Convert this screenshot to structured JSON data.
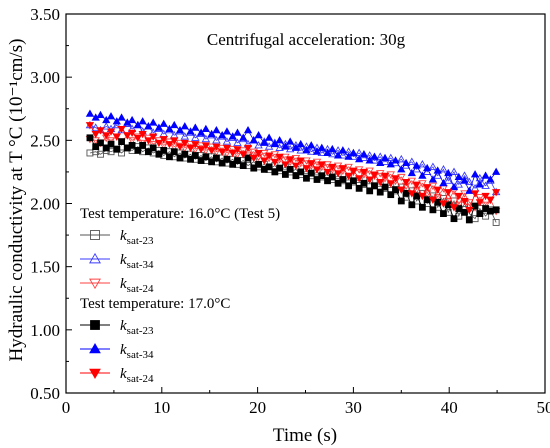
{
  "chart_data": {
    "type": "scatter",
    "annotation": "Centrifugal acceleration: 30g",
    "xlabel": "Time (s)",
    "ylabel": "Hydraulic conductivity at T °C (10⁻¹cm/s)",
    "xlim": [
      0,
      50
    ],
    "ylim": [
      0.5,
      3.5
    ],
    "x_ticks": [
      0,
      10,
      20,
      30,
      40,
      50
    ],
    "y_ticks": [
      0.5,
      1.0,
      1.5,
      2.0,
      2.5,
      3.0,
      3.5
    ],
    "x_tick_labels": [
      "0",
      "10",
      "20",
      "30",
      "40",
      "50"
    ],
    "y_tick_labels": [
      "0.50",
      "1.00",
      "1.50",
      "2.00",
      "2.50",
      "3.00",
      "3.50"
    ],
    "grid": false,
    "legend_groups": [
      {
        "title": "Test temperature: 16.0°C (Test 5)",
        "entries": [
          0,
          1,
          2
        ]
      },
      {
        "title": "Test temperature: 17.0°C",
        "entries": [
          3,
          4,
          5
        ]
      }
    ],
    "legend_placement": "left-middle",
    "x": [
      2.5,
      3.1,
      3.6,
      4.2,
      4.7,
      5.3,
      5.8,
      6.4,
      6.9,
      7.5,
      8.0,
      8.6,
      9.1,
      9.7,
      10.2,
      10.8,
      11.3,
      11.9,
      12.4,
      13.0,
      13.5,
      14.1,
      14.6,
      15.2,
      15.7,
      16.3,
      16.8,
      17.4,
      17.9,
      18.5,
      19.0,
      19.6,
      20.1,
      20.7,
      21.2,
      21.8,
      22.3,
      22.9,
      23.4,
      24.0,
      24.5,
      25.1,
      25.6,
      26.2,
      26.7,
      27.3,
      27.8,
      28.4,
      28.9,
      29.5,
      30.0,
      30.6,
      31.1,
      31.7,
      32.2,
      32.8,
      33.3,
      33.9,
      34.4,
      35.0,
      35.5,
      36.1,
      36.6,
      37.2,
      37.7,
      38.3,
      38.8,
      39.4,
      39.9,
      40.5,
      41.0,
      41.6,
      42.1,
      42.7,
      43.2,
      43.8,
      44.3,
      44.9
    ],
    "series": [
      {
        "name": "k_sat-23",
        "name_main": "k",
        "name_sub": "sat-23",
        "group": "16.0",
        "marker": "square",
        "filled": false,
        "color": "#555555",
        "values": [
          2.4,
          2.41,
          2.39,
          2.42,
          2.41,
          2.43,
          2.4,
          2.44,
          2.42,
          2.45,
          2.41,
          2.44,
          2.4,
          2.42,
          2.38,
          2.41,
          2.37,
          2.4,
          2.36,
          2.39,
          2.35,
          2.38,
          2.34,
          2.37,
          2.33,
          2.36,
          2.32,
          2.35,
          2.31,
          2.34,
          2.3,
          2.33,
          2.29,
          2.31,
          2.27,
          2.3,
          2.26,
          2.29,
          2.25,
          2.27,
          2.23,
          2.26,
          2.22,
          2.25,
          2.21,
          2.23,
          2.19,
          2.22,
          2.18,
          2.21,
          2.17,
          2.19,
          2.15,
          2.18,
          2.14,
          2.16,
          2.12,
          2.15,
          2.1,
          2.13,
          2.05,
          2.1,
          2.02,
          2.08,
          2.0,
          2.06,
          1.97,
          2.04,
          1.93,
          2.02,
          1.9,
          2.0,
          1.92,
          1.88,
          1.96,
          1.9,
          1.95,
          1.85
        ]
      },
      {
        "name": "k_sat-34",
        "name_main": "k",
        "name_sub": "sat-34",
        "group": "16.0",
        "marker": "triangle",
        "filled": false,
        "color": "#3a3aff",
        "values": [
          2.62,
          2.6,
          2.58,
          2.61,
          2.59,
          2.62,
          2.58,
          2.63,
          2.59,
          2.62,
          2.57,
          2.61,
          2.56,
          2.59,
          2.55,
          2.58,
          2.54,
          2.57,
          2.53,
          2.56,
          2.52,
          2.55,
          2.51,
          2.54,
          2.5,
          2.53,
          2.49,
          2.52,
          2.48,
          2.51,
          2.47,
          2.5,
          2.46,
          2.49,
          2.45,
          2.48,
          2.44,
          2.47,
          2.43,
          2.46,
          2.42,
          2.45,
          2.41,
          2.44,
          2.4,
          2.43,
          2.39,
          2.42,
          2.38,
          2.41,
          2.37,
          2.4,
          2.36,
          2.38,
          2.34,
          2.37,
          2.33,
          2.36,
          2.32,
          2.35,
          2.3,
          2.33,
          2.27,
          2.31,
          2.25,
          2.29,
          2.22,
          2.27,
          2.18,
          2.25,
          2.15,
          2.22,
          2.17,
          2.12,
          2.2,
          2.14,
          2.18,
          2.09
        ]
      },
      {
        "name": "k_sat-24",
        "name_main": "k",
        "name_sub": "sat-24",
        "group": "16.0",
        "marker": "triangle-down",
        "filled": false,
        "color": "#ff4040",
        "values": [
          2.51,
          2.5,
          2.48,
          2.52,
          2.5,
          2.53,
          2.49,
          2.54,
          2.5,
          2.53,
          2.48,
          2.52,
          2.47,
          2.5,
          2.46,
          2.49,
          2.45,
          2.48,
          2.44,
          2.47,
          2.43,
          2.46,
          2.42,
          2.45,
          2.41,
          2.44,
          2.4,
          2.43,
          2.39,
          2.42,
          2.38,
          2.41,
          2.37,
          2.4,
          2.36,
          2.39,
          2.35,
          2.37,
          2.33,
          2.36,
          2.32,
          2.34,
          2.3,
          2.33,
          2.29,
          2.31,
          2.27,
          2.3,
          2.26,
          2.29,
          2.25,
          2.27,
          2.23,
          2.26,
          2.22,
          2.24,
          2.2,
          2.23,
          2.18,
          2.21,
          2.14,
          2.18,
          2.11,
          2.16,
          2.08,
          2.14,
          2.05,
          2.12,
          2.02,
          2.1,
          1.99,
          2.08,
          2.01,
          1.97,
          2.05,
          1.99,
          2.03,
          1.94
        ]
      },
      {
        "name": "k_sat-23",
        "name_main": "k",
        "name_sub": "sat-23",
        "group": "17.0",
        "marker": "square",
        "filled": true,
        "color": "#000000",
        "values": [
          2.52,
          2.45,
          2.48,
          2.44,
          2.47,
          2.43,
          2.49,
          2.44,
          2.46,
          2.42,
          2.46,
          2.41,
          2.44,
          2.39,
          2.42,
          2.37,
          2.41,
          2.36,
          2.39,
          2.35,
          2.38,
          2.34,
          2.37,
          2.33,
          2.36,
          2.32,
          2.35,
          2.31,
          2.34,
          2.3,
          2.36,
          2.28,
          2.31,
          2.27,
          2.29,
          2.25,
          2.28,
          2.23,
          2.27,
          2.22,
          2.25,
          2.2,
          2.24,
          2.19,
          2.22,
          2.18,
          2.21,
          2.16,
          2.19,
          2.14,
          2.18,
          2.12,
          2.16,
          2.1,
          2.14,
          2.09,
          2.13,
          2.07,
          2.11,
          2.02,
          2.08,
          1.99,
          2.06,
          1.97,
          2.03,
          1.95,
          2.01,
          1.92,
          1.99,
          1.88,
          1.96,
          1.93,
          1.87,
          1.98,
          1.92,
          1.96,
          1.94,
          1.95
        ]
      },
      {
        "name": "k_sat-34",
        "name_main": "k",
        "name_sub": "sat-34",
        "group": "17.0",
        "marker": "triangle",
        "filled": true,
        "color": "#0000ff",
        "values": [
          2.71,
          2.68,
          2.7,
          2.66,
          2.69,
          2.65,
          2.68,
          2.64,
          2.66,
          2.62,
          2.65,
          2.61,
          2.64,
          2.6,
          2.63,
          2.59,
          2.62,
          2.58,
          2.61,
          2.57,
          2.6,
          2.56,
          2.59,
          2.55,
          2.58,
          2.54,
          2.57,
          2.53,
          2.56,
          2.52,
          2.58,
          2.5,
          2.54,
          2.48,
          2.52,
          2.47,
          2.5,
          2.45,
          2.49,
          2.44,
          2.47,
          2.42,
          2.46,
          2.41,
          2.44,
          2.4,
          2.43,
          2.38,
          2.42,
          2.37,
          2.4,
          2.35,
          2.39,
          2.34,
          2.37,
          2.32,
          2.36,
          2.31,
          2.34,
          2.27,
          2.32,
          2.24,
          2.3,
          2.22,
          2.28,
          2.19,
          2.26,
          2.16,
          2.24,
          2.13,
          2.21,
          2.18,
          2.1,
          2.23,
          2.15,
          2.22,
          2.19,
          2.25
        ]
      },
      {
        "name": "k_sat-24",
        "name_main": "k",
        "name_sub": "sat-24",
        "group": "17.0",
        "marker": "triangle-down",
        "filled": true,
        "color": "#ff0000",
        "values": [
          2.62,
          2.55,
          2.58,
          2.54,
          2.57,
          2.53,
          2.59,
          2.54,
          2.56,
          2.52,
          2.55,
          2.5,
          2.53,
          2.48,
          2.51,
          2.47,
          2.5,
          2.45,
          2.48,
          2.44,
          2.47,
          2.43,
          2.46,
          2.42,
          2.45,
          2.41,
          2.44,
          2.4,
          2.43,
          2.39,
          2.44,
          2.36,
          2.4,
          2.34,
          2.38,
          2.33,
          2.37,
          2.31,
          2.35,
          2.3,
          2.34,
          2.28,
          2.32,
          2.27,
          2.31,
          2.25,
          2.29,
          2.24,
          2.28,
          2.22,
          2.26,
          2.2,
          2.25,
          2.19,
          2.23,
          2.17,
          2.22,
          2.16,
          2.2,
          2.11,
          2.17,
          2.08,
          2.15,
          2.06,
          2.13,
          2.03,
          2.11,
          2.0,
          2.09,
          1.97,
          2.06,
          2.02,
          1.95,
          2.08,
          2.01,
          2.06,
          2.03,
          2.09
        ]
      }
    ]
  }
}
